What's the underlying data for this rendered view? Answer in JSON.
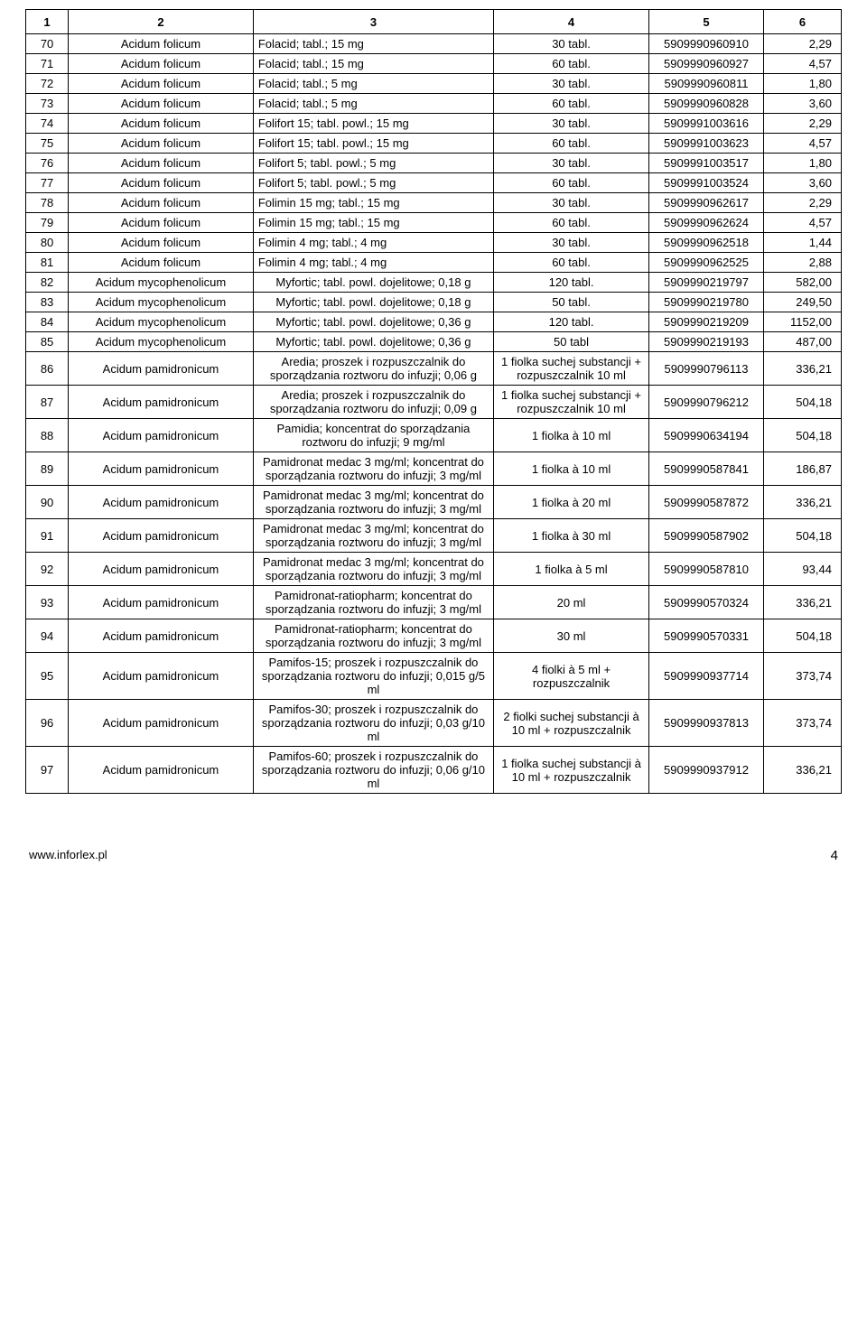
{
  "table": {
    "col_widths": [
      "46px",
      "200px",
      "260px",
      "168px",
      "124px",
      "84px"
    ],
    "headers": [
      "1",
      "2",
      "3",
      "4",
      "5",
      "6"
    ],
    "rows": [
      {
        "n": "70",
        "name": "Acidum folicum",
        "prod": "Folacid; tabl.; 15 mg",
        "qty": "30 tabl.",
        "code": "5909990960910",
        "price": "2,29",
        "c3align": "left"
      },
      {
        "n": "71",
        "name": "Acidum folicum",
        "prod": "Folacid; tabl.; 15 mg",
        "qty": "60 tabl.",
        "code": "5909990960927",
        "price": "4,57",
        "c3align": "left"
      },
      {
        "n": "72",
        "name": "Acidum folicum",
        "prod": "Folacid; tabl.; 5 mg",
        "qty": "30 tabl.",
        "code": "5909990960811",
        "price": "1,80",
        "c3align": "left"
      },
      {
        "n": "73",
        "name": "Acidum folicum",
        "prod": "Folacid; tabl.; 5 mg",
        "qty": "60 tabl.",
        "code": "5909990960828",
        "price": "3,60",
        "c3align": "left"
      },
      {
        "n": "74",
        "name": "Acidum folicum",
        "prod": "Folifort 15; tabl. powl.; 15 mg",
        "qty": "30 tabl.",
        "code": "5909991003616",
        "price": "2,29",
        "c3align": "left"
      },
      {
        "n": "75",
        "name": "Acidum folicum",
        "prod": "Folifort 15; tabl. powl.; 15 mg",
        "qty": "60 tabl.",
        "code": "5909991003623",
        "price": "4,57",
        "c3align": "left"
      },
      {
        "n": "76",
        "name": "Acidum folicum",
        "prod": "Folifort 5; tabl. powl.; 5 mg",
        "qty": "30 tabl.",
        "code": "5909991003517",
        "price": "1,80",
        "c3align": "left"
      },
      {
        "n": "77",
        "name": "Acidum folicum",
        "prod": "Folifort 5; tabl. powl.; 5 mg",
        "qty": "60 tabl.",
        "code": "5909991003524",
        "price": "3,60",
        "c3align": "left"
      },
      {
        "n": "78",
        "name": "Acidum folicum",
        "prod": "Folimin 15 mg; tabl.; 15 mg",
        "qty": "30 tabl.",
        "code": "5909990962617",
        "price": "2,29",
        "c3align": "left"
      },
      {
        "n": "79",
        "name": "Acidum folicum",
        "prod": "Folimin 15 mg; tabl.; 15 mg",
        "qty": "60 tabl.",
        "code": "5909990962624",
        "price": "4,57",
        "c3align": "left"
      },
      {
        "n": "80",
        "name": "Acidum folicum",
        "prod": "Folimin 4 mg; tabl.; 4 mg",
        "qty": "30 tabl.",
        "code": "5909990962518",
        "price": "1,44",
        "c3align": "left"
      },
      {
        "n": "81",
        "name": "Acidum folicum",
        "prod": "Folimin 4 mg; tabl.; 4 mg",
        "qty": "60 tabl.",
        "code": "5909990962525",
        "price": "2,88",
        "c3align": "left"
      },
      {
        "n": "82",
        "name": "Acidum mycophenolicum",
        "prod": "Myfortic; tabl. powl. dojelitowe; 0,18 g",
        "qty": "120 tabl.",
        "code": "5909990219797",
        "price": "582,00",
        "c3align": "center"
      },
      {
        "n": "83",
        "name": "Acidum mycophenolicum",
        "prod": "Myfortic; tabl. powl. dojelitowe; 0,18 g",
        "qty": "50 tabl.",
        "code": "5909990219780",
        "price": "249,50",
        "c3align": "center"
      },
      {
        "n": "84",
        "name": "Acidum mycophenolicum",
        "prod": "Myfortic; tabl. powl. dojelitowe; 0,36 g",
        "qty": "120 tabl.",
        "code": "5909990219209",
        "price": "1152,00",
        "c3align": "center"
      },
      {
        "n": "85",
        "name": "Acidum mycophenolicum",
        "prod": "Myfortic; tabl. powl. dojelitowe; 0,36 g",
        "qty": "50 tabl",
        "code": "5909990219193",
        "price": "487,00",
        "c3align": "center"
      },
      {
        "n": "86",
        "name": "Acidum pamidronicum",
        "prod": "Aredia; proszek i rozpuszczalnik do sporządzania roztworu do infuzji; 0,06 g",
        "qty": "1 fiolka suchej substancji + rozpuszczalnik 10 ml",
        "code": "5909990796113",
        "price": "336,21",
        "c3align": "center"
      },
      {
        "n": "87",
        "name": "Acidum pamidronicum",
        "prod": "Aredia; proszek i rozpuszczalnik do sporządzania roztworu do infuzji; 0,09 g",
        "qty": "1 fiolka suchej substancji + rozpuszczalnik 10 ml",
        "code": "5909990796212",
        "price": "504,18",
        "c3align": "center"
      },
      {
        "n": "88",
        "name": "Acidum pamidronicum",
        "prod": "Pamidia; koncentrat do sporządzania roztworu do infuzji; 9 mg/ml",
        "qty": "1 fiolka à 10 ml",
        "code": "5909990634194",
        "price": "504,18",
        "c3align": "center"
      },
      {
        "n": "89",
        "name": "Acidum pamidronicum",
        "prod": "Pamidronat medac 3 mg/ml; koncentrat do sporządzania roztworu do infuzji; 3 mg/ml",
        "qty": "1 fiolka à 10 ml",
        "code": "5909990587841",
        "price": "186,87",
        "c3align": "center"
      },
      {
        "n": "90",
        "name": "Acidum pamidronicum",
        "prod": "Pamidronat medac 3 mg/ml; koncentrat do sporządzania roztworu do infuzji; 3 mg/ml",
        "qty": "1 fiolka à 20 ml",
        "code": "5909990587872",
        "price": "336,21",
        "c3align": "center"
      },
      {
        "n": "91",
        "name": "Acidum pamidronicum",
        "prod": "Pamidronat medac 3 mg/ml; koncentrat do sporządzania roztworu do infuzji; 3 mg/ml",
        "qty": "1 fiolka à 30 ml",
        "code": "5909990587902",
        "price": "504,18",
        "c3align": "center"
      },
      {
        "n": "92",
        "name": "Acidum pamidronicum",
        "prod": "Pamidronat medac 3 mg/ml; koncentrat do sporządzania roztworu do infuzji; 3 mg/ml",
        "qty": "1 fiolka à 5 ml",
        "code": "5909990587810",
        "price": "93,44",
        "c3align": "center"
      },
      {
        "n": "93",
        "name": "Acidum pamidronicum",
        "prod": "Pamidronat-ratiopharm; koncentrat do sporządzania roztworu do infuzji; 3 mg/ml",
        "qty": "20 ml",
        "code": "5909990570324",
        "price": "336,21",
        "c3align": "center"
      },
      {
        "n": "94",
        "name": "Acidum pamidronicum",
        "prod": "Pamidronat-ratiopharm; koncentrat do sporządzania roztworu do infuzji; 3 mg/ml",
        "qty": "30 ml",
        "code": "5909990570331",
        "price": "504,18",
        "c3align": "center"
      },
      {
        "n": "95",
        "name": "Acidum pamidronicum",
        "prod": "Pamifos-15; proszek i rozpuszczalnik do sporządzania roztworu do infuzji; 0,015 g/5 ml",
        "qty": "4 fiolki à 5 ml + rozpuszczalnik",
        "code": "5909990937714",
        "price": "373,74",
        "c3align": "center"
      },
      {
        "n": "96",
        "name": "Acidum pamidronicum",
        "prod": "Pamifos-30; proszek i rozpuszczalnik do sporządzania roztworu do infuzji; 0,03 g/10 ml",
        "qty": "2 fiolki suchej substancji à 10 ml + rozpuszczalnik",
        "code": "5909990937813",
        "price": "373,74",
        "c3align": "center"
      },
      {
        "n": "97",
        "name": "Acidum pamidronicum",
        "prod": "Pamifos-60; proszek i rozpuszczalnik do sporządzania roztworu do infuzji; 0,06 g/10 ml",
        "qty": "1 fiolka suchej substancji à 10 ml + rozpuszczalnik",
        "code": "5909990937912",
        "price": "336,21",
        "c3align": "center"
      }
    ]
  },
  "footer": {
    "url": "www.inforlex.pl",
    "page": "4"
  }
}
